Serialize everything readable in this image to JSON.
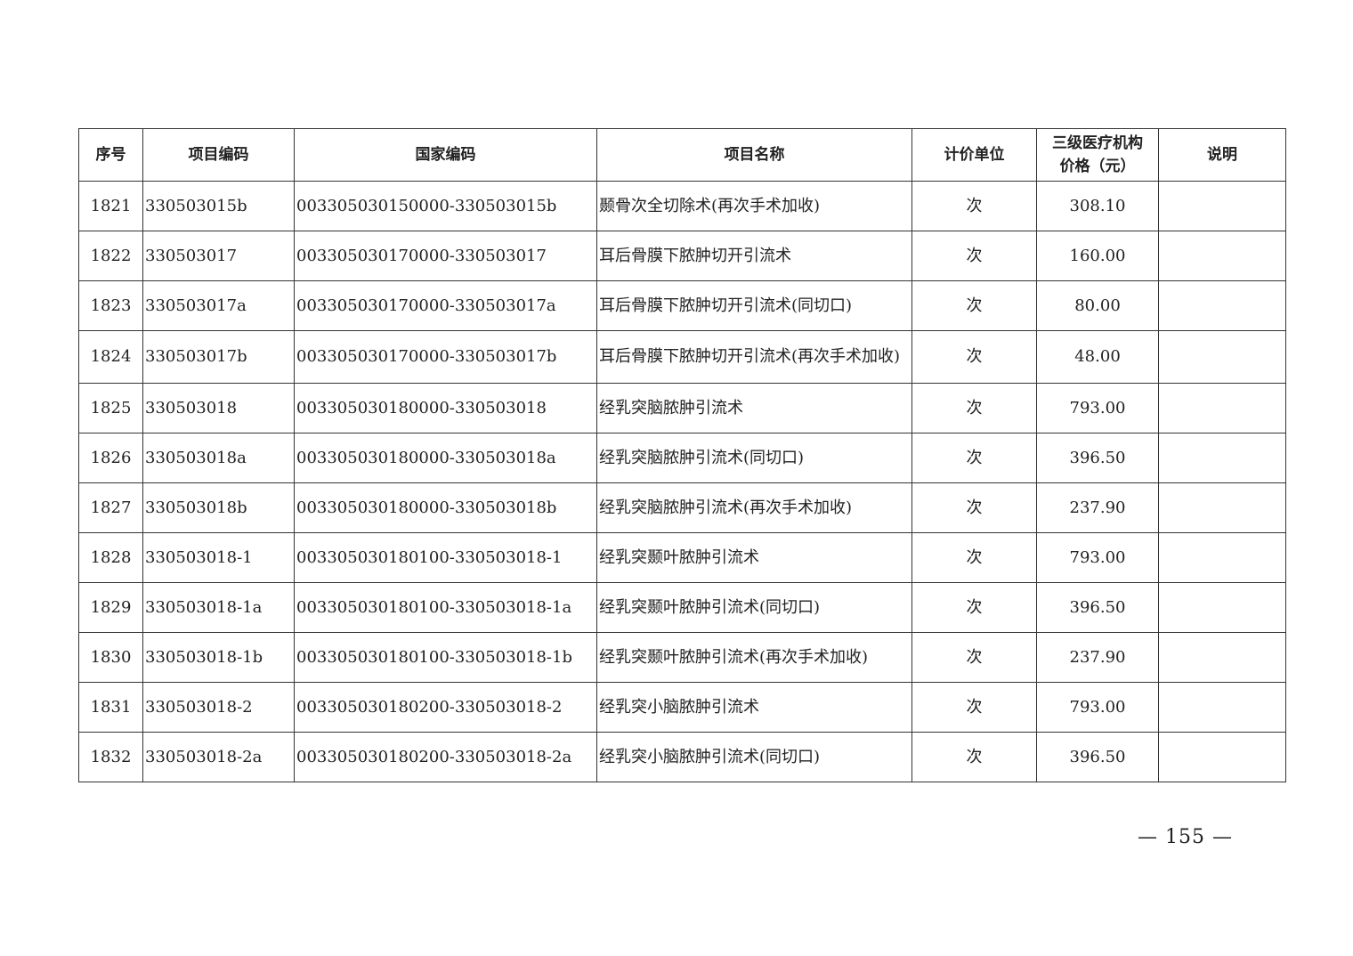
{
  "table": {
    "headers": [
      "序号",
      "项目编码",
      "国家编码",
      "项目名称",
      "计价单位",
      "三级医疗机构价格（元）",
      "说明"
    ],
    "rows": [
      {
        "no": "1821",
        "code": "330503015b",
        "national_code": "003305030150000-330503015b",
        "name": "颞骨次全切除术(再次手术加收)",
        "unit": "次",
        "price": "308.10",
        "note": ""
      },
      {
        "no": "1822",
        "code": "330503017",
        "national_code": "003305030170000-330503017",
        "name": "耳后骨膜下脓肿切开引流术",
        "unit": "次",
        "price": "160.00",
        "note": ""
      },
      {
        "no": "1823",
        "code": "330503017a",
        "national_code": "003305030170000-330503017a",
        "name": "耳后骨膜下脓肿切开引流术(同切口)",
        "unit": "次",
        "price": "80.00",
        "note": ""
      },
      {
        "no": "1824",
        "code": "330503017b",
        "national_code": "003305030170000-330503017b",
        "name": "耳后骨膜下脓肿切开引流术(再次手术加收)",
        "unit": "次",
        "price": "48.00",
        "note": ""
      },
      {
        "no": "1825",
        "code": "330503018",
        "national_code": "003305030180000-330503018",
        "name": "经乳突脑脓肿引流术",
        "unit": "次",
        "price": "793.00",
        "note": ""
      },
      {
        "no": "1826",
        "code": "330503018a",
        "national_code": "003305030180000-330503018a",
        "name": "经乳突脑脓肿引流术(同切口)",
        "unit": "次",
        "price": "396.50",
        "note": ""
      },
      {
        "no": "1827",
        "code": "330503018b",
        "national_code": "003305030180000-330503018b",
        "name": "经乳突脑脓肿引流术(再次手术加收)",
        "unit": "次",
        "price": "237.90",
        "note": ""
      },
      {
        "no": "1828",
        "code": "330503018-1",
        "national_code": "003305030180100-330503018-1",
        "name": "经乳突颞叶脓肿引流术",
        "unit": "次",
        "price": "793.00",
        "note": ""
      },
      {
        "no": "1829",
        "code": "330503018-1a",
        "national_code": "003305030180100-330503018-1a",
        "name": "经乳突颞叶脓肿引流术(同切口)",
        "unit": "次",
        "price": "396.50",
        "note": ""
      },
      {
        "no": "1830",
        "code": "330503018-1b",
        "national_code": "003305030180100-330503018-1b",
        "name": "经乳突颞叶脓肿引流术(再次手术加收)",
        "unit": "次",
        "price": "237.90",
        "note": ""
      },
      {
        "no": "1831",
        "code": "330503018-2",
        "national_code": "003305030180200-330503018-2",
        "name": "经乳突小脑脓肿引流术",
        "unit": "次",
        "price": "793.00",
        "note": ""
      },
      {
        "no": "1832",
        "code": "330503018-2a",
        "national_code": "003305030180200-330503018-2a",
        "name": "经乳突小脑脓肿引流术(同切口)",
        "unit": "次",
        "price": "396.50",
        "note": ""
      }
    ]
  },
  "footer": {
    "page_number": "— 155 —"
  }
}
